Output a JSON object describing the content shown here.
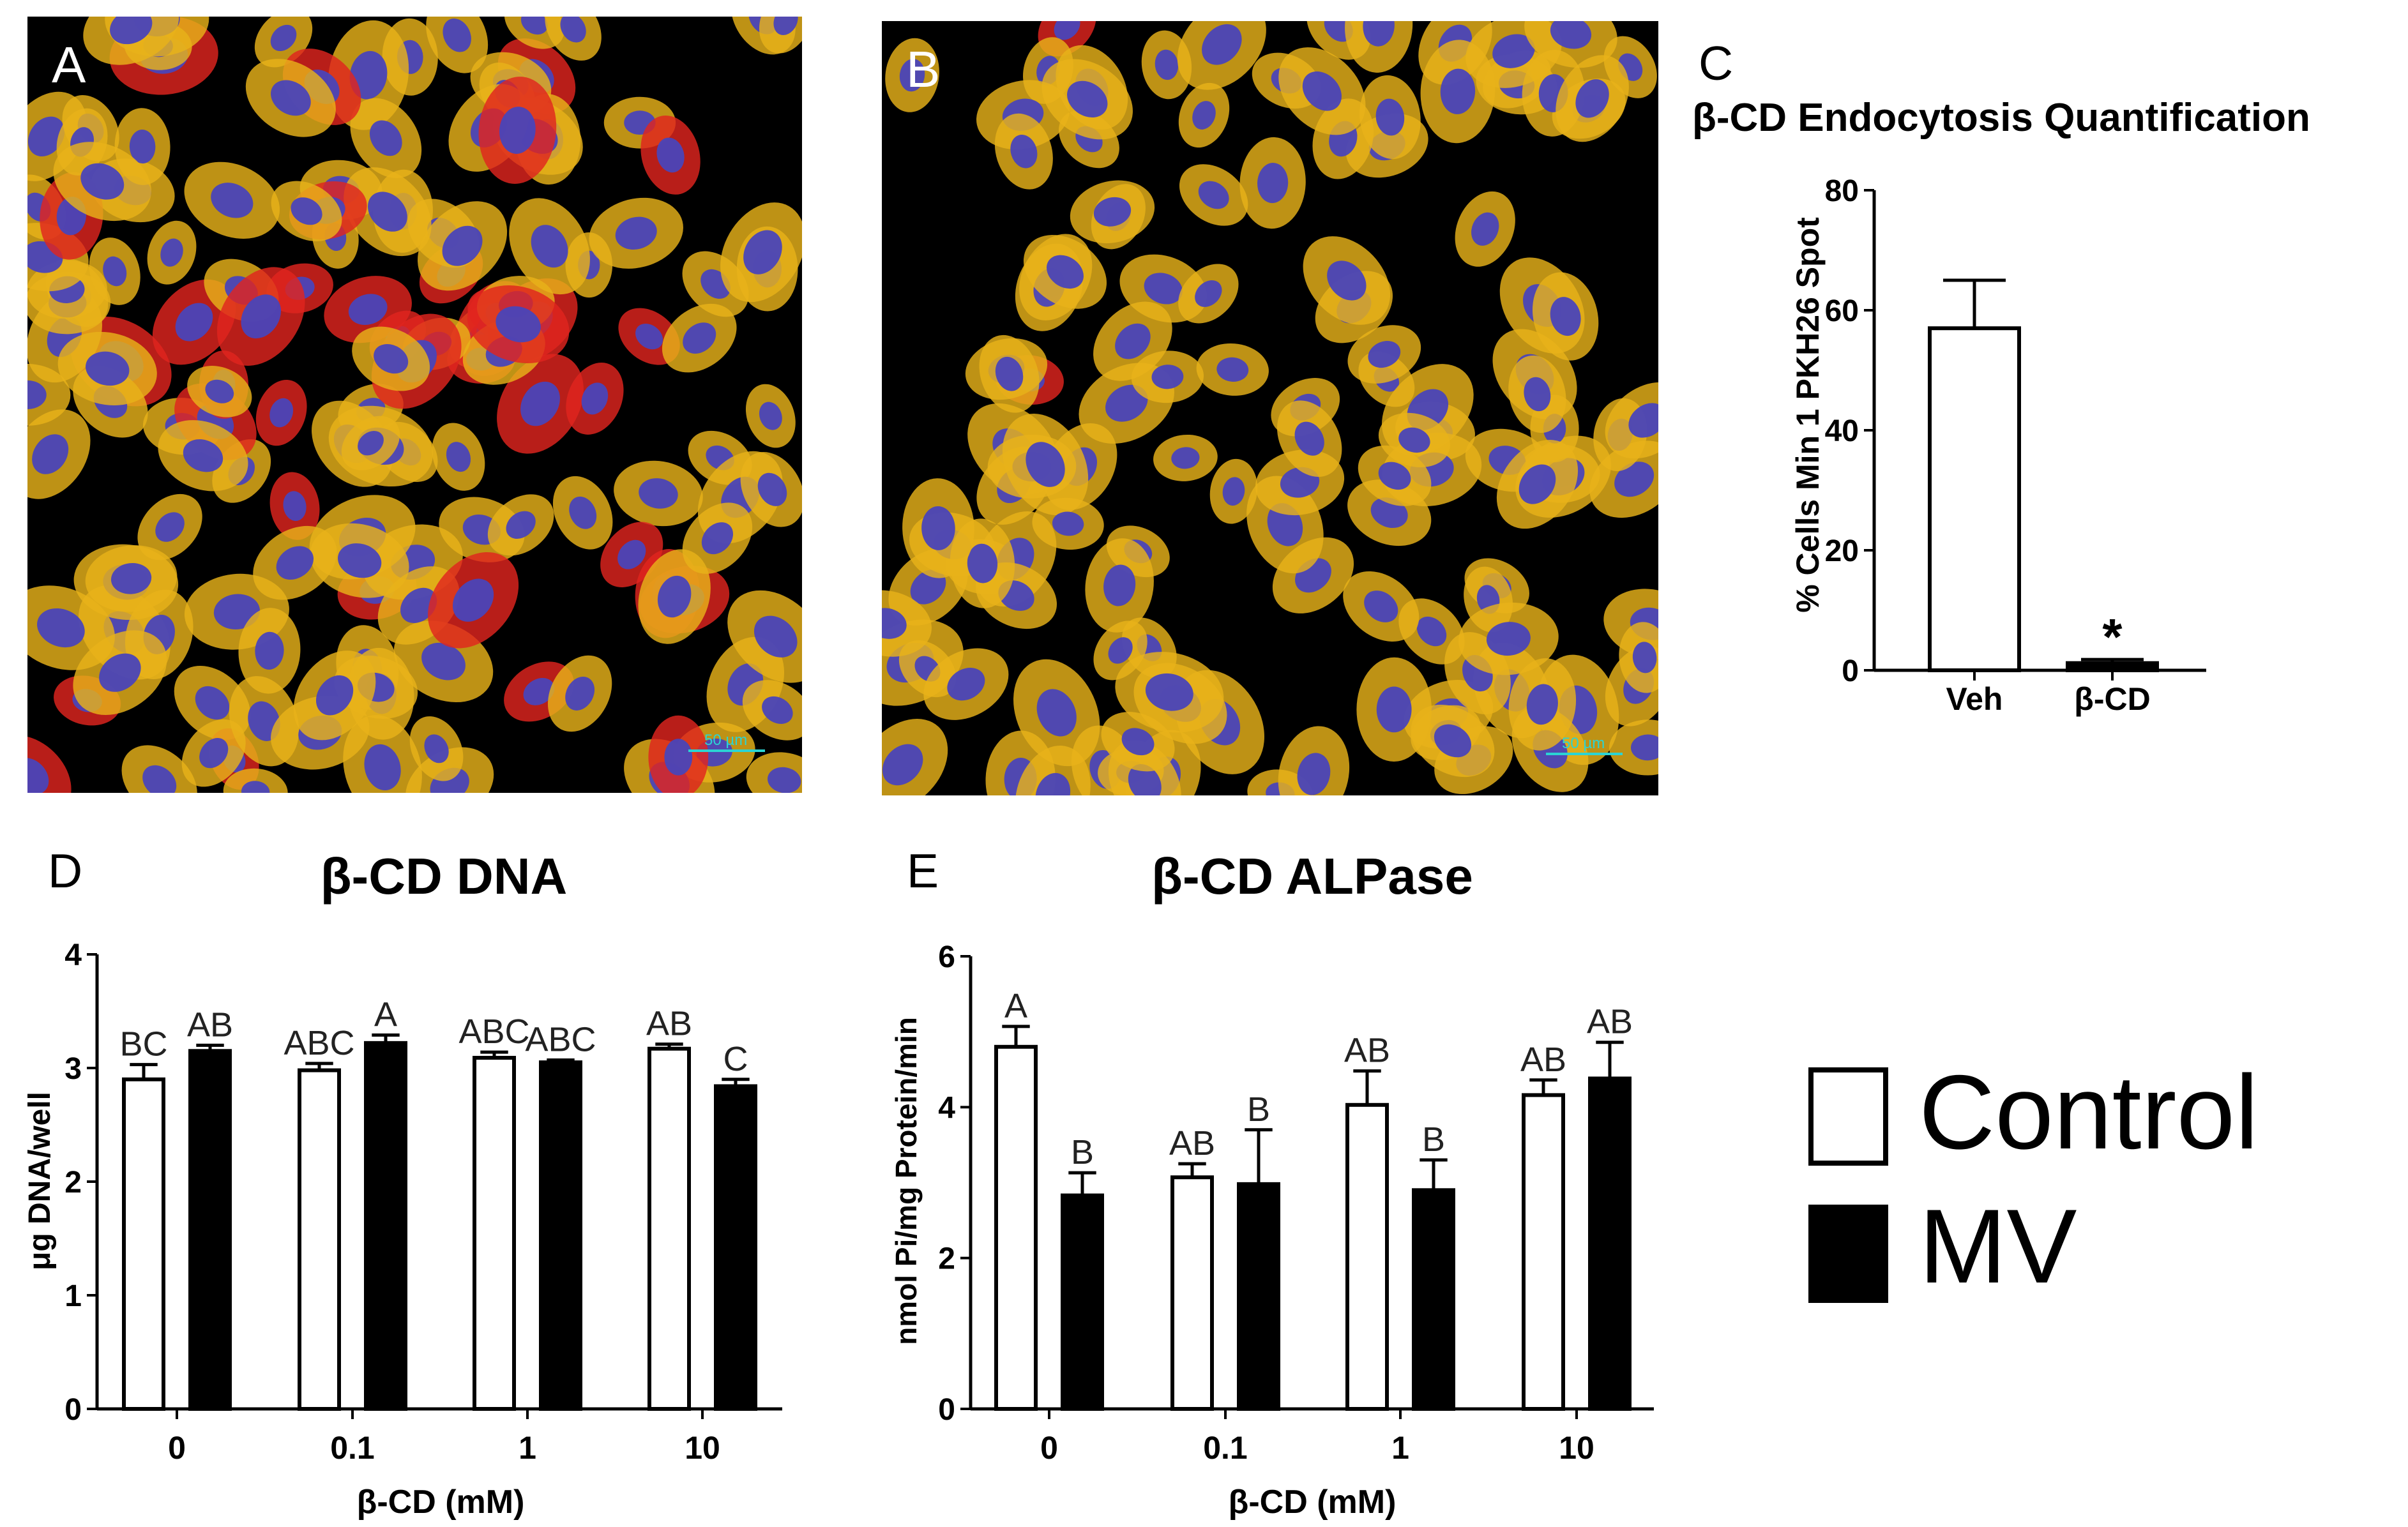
{
  "panels": {
    "A": {
      "letter": "A",
      "scale_label": "50 µm"
    },
    "B": {
      "letter": "B",
      "scale_label": "50 µm"
    }
  },
  "legend": [
    {
      "label": "Control",
      "color": "#ffffff"
    },
    {
      "label": "MV",
      "color": "#000000"
    }
  ],
  "colors": {
    "nucleus": "#4a44b8",
    "cytoplasm": "#e8b21a",
    "pkh26": "#e0241e",
    "scale": "#2bd3d3"
  },
  "chart_data": [
    {
      "panel": "C",
      "title": "β-CD Endocytosis Quantification",
      "type": "bar",
      "categories": [
        "Veh",
        "β-CD"
      ],
      "values": [
        57,
        1.2
      ],
      "errors": [
        8,
        0.6
      ],
      "fills": [
        "#ffffff",
        "#000000"
      ],
      "annotations": [
        "",
        "*"
      ],
      "ylabel": "% Cells Min 1 PKH26 Spot",
      "xlabel": "",
      "ylim": [
        0,
        80
      ],
      "yticks": [
        0,
        20,
        40,
        60,
        80
      ]
    },
    {
      "panel": "D",
      "title": "β-CD DNA",
      "type": "bar",
      "categories": [
        "0",
        "0.1",
        "1",
        "10"
      ],
      "series": [
        {
          "values": [
            2.9,
            2.98,
            3.09,
            3.17
          ],
          "errors": [
            0.13,
            0.06,
            0.05,
            0.04
          ],
          "labels": [
            "BC",
            "ABC",
            "ABC",
            "AB"
          ]
        },
        {
          "values": [
            3.15,
            3.22,
            3.05,
            2.84
          ],
          "errors": [
            0.05,
            0.07,
            0.02,
            0.06
          ],
          "labels": [
            "AB",
            "A",
            "ABC",
            "C"
          ]
        }
      ],
      "ylabel": "μg DNA/well",
      "xlabel": "β-CD (mM)",
      "ylim": [
        0,
        4
      ],
      "yticks": [
        0,
        1,
        2,
        3,
        4
      ]
    },
    {
      "panel": "E",
      "title": "β-CD ALPase",
      "type": "bar",
      "categories": [
        "0",
        "0.1",
        "1",
        "10"
      ],
      "series": [
        {
          "values": [
            4.8,
            3.07,
            4.03,
            4.16
          ],
          "errors": [
            0.27,
            0.18,
            0.45,
            0.2
          ],
          "labels": [
            "A",
            "AB",
            "AB",
            "AB"
          ]
        },
        {
          "values": [
            2.83,
            2.98,
            2.9,
            4.38
          ],
          "errors": [
            0.3,
            0.72,
            0.4,
            0.48
          ],
          "labels": [
            "B",
            "B",
            "B",
            "AB"
          ]
        }
      ],
      "ylabel": "nmol Pi/mg Protein/min",
      "xlabel": "β-CD (mM)",
      "ylim": [
        0,
        6
      ],
      "yticks": [
        0,
        2,
        4,
        6
      ]
    }
  ]
}
